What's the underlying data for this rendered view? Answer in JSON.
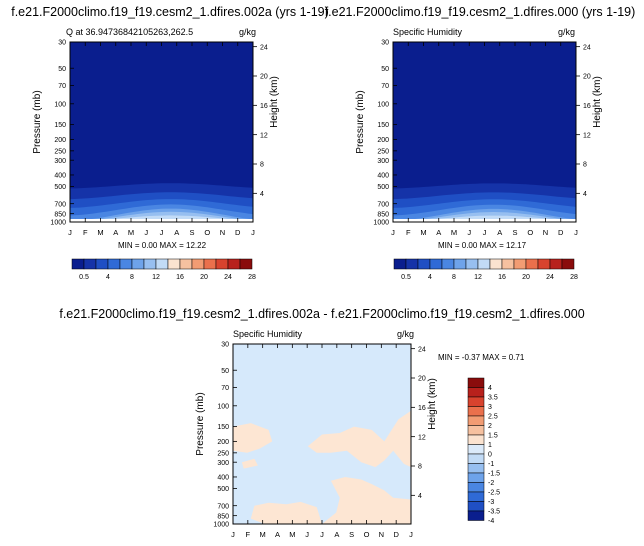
{
  "chart_data": [
    {
      "type": "heatmap",
      "title": "f.e21.F2000climo.f19_f19.cesm2_1.dfires.002a (yrs 1-19)",
      "left_label": "Q at 36.94736842105263,262.5",
      "right_label": "g/kg",
      "ylabel": "Pressure (mb)",
      "y2label": "Height (km)",
      "x_ticks": [
        "J",
        "F",
        "M",
        "A",
        "M",
        "J",
        "J",
        "A",
        "S",
        "O",
        "N",
        "D",
        "J"
      ],
      "pressure_ticks": [
        "30",
        "50",
        "70",
        "100",
        "150",
        "200",
        "250",
        "300",
        "400",
        "500",
        "700",
        "850",
        "1000"
      ],
      "height_ticks": [
        "24",
        "20",
        "16",
        "12",
        "8",
        "4"
      ],
      "min_max_text": "MIN =   0.00 MAX =  12.22",
      "min": 0.0,
      "max": 12.22,
      "colorbar_labels": [
        "0.5",
        "4",
        "8",
        "12",
        "16",
        "20",
        "24",
        "28"
      ]
    },
    {
      "type": "heatmap",
      "title": "f.e21.F2000climo.f19_f19.cesm2_1.dfires.000 (yrs 1-19)",
      "left_label": "Specific Humidity",
      "right_label": "g/kg",
      "ylabel": "Pressure (mb)",
      "y2label": "Height (km)",
      "x_ticks": [
        "J",
        "F",
        "M",
        "A",
        "M",
        "J",
        "J",
        "A",
        "S",
        "O",
        "N",
        "D",
        "J"
      ],
      "pressure_ticks": [
        "30",
        "50",
        "70",
        "100",
        "150",
        "200",
        "250",
        "300",
        "400",
        "500",
        "700",
        "850",
        "1000"
      ],
      "height_ticks": [
        "24",
        "20",
        "16",
        "12",
        "8",
        "4"
      ],
      "min_max_text": "MIN =   0.00 MAX =  12.17",
      "min": 0.0,
      "max": 12.17,
      "colorbar_labels": [
        "0.5",
        "4",
        "8",
        "12",
        "16",
        "20",
        "24",
        "28"
      ]
    },
    {
      "type": "heatmap",
      "title": "f.e21.F2000climo.f19_f19.cesm2_1.dfires.002a - f.e21.F2000climo.f19_f19.cesm2_1.dfires.000",
      "left_label": "Specific Humidity",
      "right_label": "g/kg",
      "ylabel": "Pressure (mb)",
      "y2label": "Height (km)",
      "x_ticks": [
        "J",
        "F",
        "M",
        "A",
        "M",
        "J",
        "J",
        "A",
        "S",
        "O",
        "N",
        "D",
        "J"
      ],
      "pressure_ticks": [
        "30",
        "50",
        "70",
        "100",
        "150",
        "200",
        "250",
        "300",
        "400",
        "500",
        "700",
        "850",
        "1000"
      ],
      "height_ticks": [
        "24",
        "20",
        "16",
        "12",
        "8",
        "4"
      ],
      "min_max_text": "MIN =  -0.37 MAX =   0.71",
      "min": -0.37,
      "max": 0.71,
      "colorbar_labels": [
        "4",
        "3.5",
        "3",
        "2.5",
        "2",
        "1.5",
        "1",
        "0",
        "-1",
        "-1.5",
        "-2",
        "-2.5",
        "-3",
        "-3.5",
        "-4"
      ]
    }
  ],
  "colors": {
    "seq": [
      "#0a1e8e",
      "#1533a8",
      "#1f4fc4",
      "#2f6ad6",
      "#4a86e2",
      "#6ea3ea",
      "#97bff0",
      "#c2dbf6",
      "#fbe3d0",
      "#f6c1a0",
      "#f29c73",
      "#ea704c",
      "#d8432e",
      "#b8211c",
      "#8a0c0c"
    ],
    "div": [
      "#8a0c0c",
      "#b8211c",
      "#d8432e",
      "#ea704c",
      "#f29c73",
      "#f6c1a0",
      "#fbe3d0",
      "#dbeafa",
      "#c2dbf6",
      "#97bff0",
      "#6ea3ea",
      "#4a86e2",
      "#2f6ad6",
      "#1f4fc4",
      "#0a1e8e"
    ],
    "diff_background": "#d6e9fb",
    "diff_positive": "#fde6d3"
  }
}
